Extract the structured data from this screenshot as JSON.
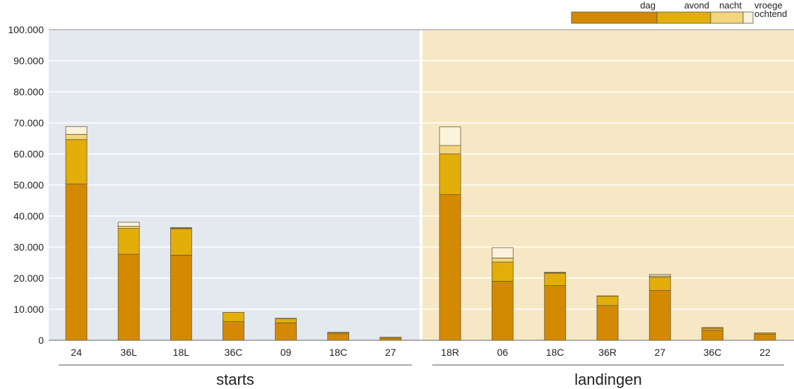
{
  "chart_data": {
    "type": "bar",
    "stacked": true,
    "ylim": [
      0,
      100000
    ],
    "y_ticks": [
      "0",
      "10.000",
      "20.000",
      "30.000",
      "40.000",
      "50.000",
      "60.000",
      "70.000",
      "80.000",
      "90.000",
      "100.000"
    ],
    "y_tick_values": [
      0,
      10000,
      20000,
      30000,
      40000,
      50000,
      60000,
      70000,
      80000,
      90000,
      100000
    ],
    "grid": true,
    "legend_position": "top-right",
    "legend": [
      {
        "key": "dag",
        "label": "dag",
        "color": "#D48A00"
      },
      {
        "key": "avond",
        "label": "avond",
        "color": "#E3AE0A"
      },
      {
        "key": "nacht",
        "label": "nacht",
        "color": "#F2D57C"
      },
      {
        "key": "vroege_ochtend",
        "label": "vroege ochtend",
        "label_lines": [
          "vroege",
          "ochtend"
        ],
        "color": "#FCF3DC"
      }
    ],
    "groups": [
      {
        "label": "starts",
        "background": "#E4E9F0",
        "categories": [
          "24",
          "36L",
          "18L",
          "36C",
          "09",
          "18C",
          "27"
        ],
        "series": [
          {
            "name": "dag",
            "values": [
              50300,
              27700,
              27400,
              6000,
              5600,
              2100,
              700
            ]
          },
          {
            "name": "avond",
            "values": [
              14300,
              8300,
              8500,
              3000,
              1400,
              400,
              300
            ]
          },
          {
            "name": "nacht",
            "values": [
              1700,
              700,
              200,
              0,
              0,
              0,
              0
            ]
          },
          {
            "name": "vroege ochtend",
            "values": [
              2500,
              1300,
              200,
              0,
              100,
              100,
              0
            ]
          }
        ]
      },
      {
        "label": "landingen",
        "background": "#F7E8C5",
        "categories": [
          "18R",
          "06",
          "18C",
          "36R",
          "27",
          "36C",
          "22"
        ],
        "series": [
          {
            "name": "dag",
            "values": [
              46900,
              19000,
              17600,
              11200,
              16000,
              3200,
              2000
            ]
          },
          {
            "name": "avond",
            "values": [
              13100,
              6200,
              4000,
              3000,
              4300,
              700,
              400
            ]
          },
          {
            "name": "nacht",
            "values": [
              2700,
              1300,
              200,
              0,
              400,
              200,
              0
            ]
          },
          {
            "name": "vroege ochtend",
            "values": [
              6000,
              3300,
              100,
              100,
              500,
              0,
              0
            ]
          }
        ]
      }
    ]
  }
}
